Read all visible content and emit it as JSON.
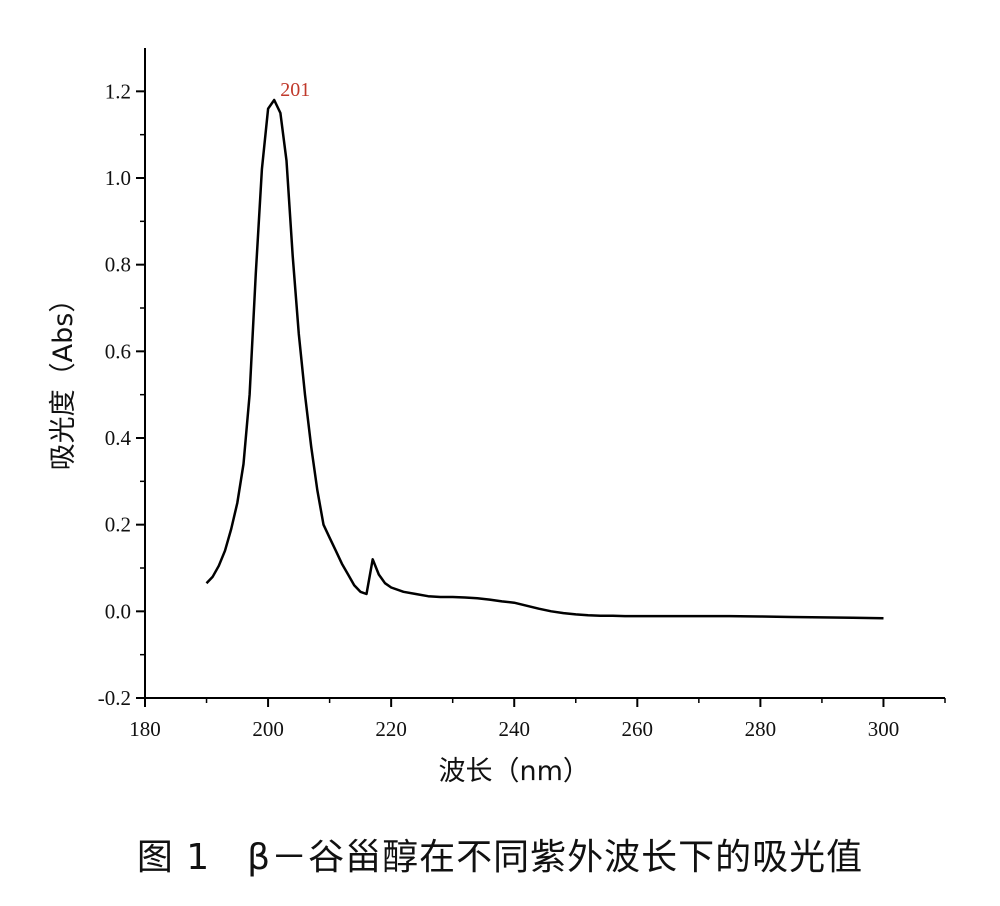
{
  "caption": "图 1　β－谷甾醇在不同紫外波长下的吸光值",
  "chart_data": {
    "type": "line",
    "title": "",
    "xlabel": "波长（nm）",
    "ylabel": "吸光度（Abs）",
    "xlim": [
      180,
      310
    ],
    "ylim": [
      -0.2,
      1.3
    ],
    "x_ticks": [
      180,
      200,
      220,
      240,
      260,
      280,
      300
    ],
    "y_ticks": [
      -0.2,
      0.0,
      0.2,
      0.4,
      0.6,
      0.8,
      1.0,
      1.2
    ],
    "x_tick_labels": [
      "180",
      "200",
      "220",
      "240",
      "260",
      "280",
      "300"
    ],
    "y_tick_labels": [
      "-0.2",
      "0.0",
      "0.2",
      "0.4",
      "0.6",
      "0.8",
      "1.0",
      "1.2"
    ],
    "grid": false,
    "line_color": "#000000",
    "annotation": {
      "text": "201",
      "x": 201,
      "y": 1.18,
      "color": "#c0392b"
    },
    "series": [
      {
        "x": [
          190,
          191,
          192,
          193,
          194,
          195,
          196,
          197,
          198,
          199,
          200,
          201,
          202,
          203,
          204,
          205,
          206,
          207,
          208,
          209,
          210,
          211,
          212,
          213,
          214,
          215,
          216,
          217,
          218,
          219,
          220,
          222,
          224,
          226,
          228,
          230,
          232,
          234,
          236,
          238,
          240,
          242,
          244,
          246,
          248,
          250,
          252,
          254,
          256,
          258,
          260,
          265,
          270,
          275,
          280,
          285,
          290,
          295,
          300
        ],
        "values": [
          0.065,
          0.08,
          0.105,
          0.14,
          0.19,
          0.25,
          0.34,
          0.5,
          0.78,
          1.02,
          1.16,
          1.18,
          1.15,
          1.04,
          0.82,
          0.64,
          0.5,
          0.38,
          0.28,
          0.2,
          0.17,
          0.14,
          0.11,
          0.085,
          0.06,
          0.045,
          0.04,
          0.12,
          0.085,
          0.065,
          0.055,
          0.045,
          0.04,
          0.035,
          0.033,
          0.033,
          0.032,
          0.03,
          0.027,
          0.023,
          0.02,
          0.013,
          0.006,
          0.0,
          -0.004,
          -0.007,
          -0.009,
          -0.01,
          -0.01,
          -0.011,
          -0.011,
          -0.011,
          -0.011,
          -0.011,
          -0.012,
          -0.013,
          -0.014,
          -0.015,
          -0.016
        ]
      }
    ]
  }
}
